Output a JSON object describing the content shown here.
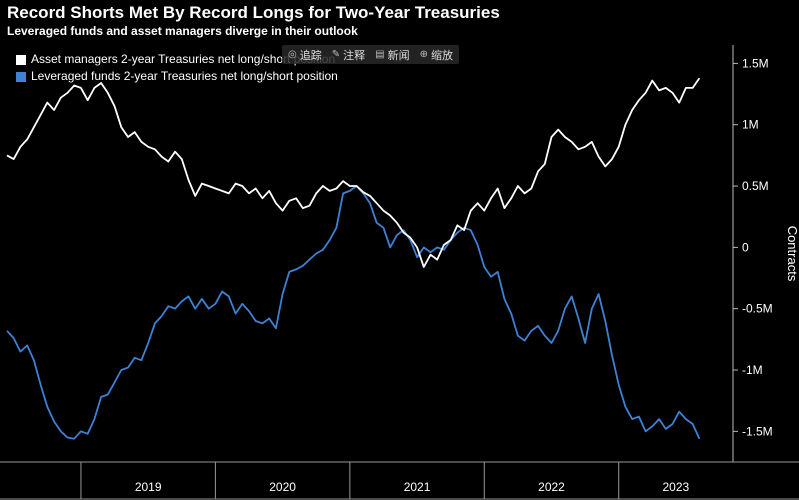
{
  "header": {
    "title": "Record Shorts Met By Record Longs for Two-Year Treasuries",
    "subtitle": "Leveraged funds and asset managers diverge in their outlook"
  },
  "toolbar_overlay": {
    "items": [
      {
        "icon": "fingerprint-icon",
        "glyph": "◎",
        "label": "追踪"
      },
      {
        "icon": "note-icon",
        "glyph": "✎",
        "label": "注释"
      },
      {
        "icon": "news-icon",
        "glyph": "▤",
        "label": "新闻"
      },
      {
        "icon": "zoom-icon",
        "glyph": "⊕",
        "label": "缩放"
      }
    ]
  },
  "chart_data": {
    "type": "line",
    "title": "Record Shorts Met By Record Longs for Two-Year Treasuries",
    "subtitle": "Leveraged funds and asset managers diverge in their outlook",
    "ylabel": "Contracts",
    "xlabel": "",
    "ylim": [
      -1.75,
      1.65
    ],
    "yticks": [
      {
        "value": 1.5,
        "label": "1.5M"
      },
      {
        "value": 1.0,
        "label": "1M"
      },
      {
        "value": 0.5,
        "label": "0.5M"
      },
      {
        "value": 0,
        "label": "0"
      },
      {
        "value": -0.5,
        "label": "-0.5M"
      },
      {
        "value": -1.0,
        "label": "-1M"
      },
      {
        "value": -1.5,
        "label": "-1.5M"
      }
    ],
    "xrange": [
      2018.45,
      2023.85
    ],
    "year_labels": [
      {
        "year": 2019,
        "label": "2019"
      },
      {
        "year": 2020,
        "label": "2020"
      },
      {
        "year": 2021,
        "label": "2021"
      },
      {
        "year": 2022,
        "label": "2022"
      },
      {
        "year": 2023,
        "label": "2023"
      }
    ],
    "year_boundaries": [
      2019,
      2020,
      2021,
      2022,
      2023
    ],
    "grid": false,
    "legend_position": "top-left",
    "series": [
      {
        "name": "Asset managers 2-year Treasuries net long/short position",
        "color": "#ffffff",
        "x": [
          2018.45,
          2018.5,
          2018.55,
          2018.6,
          2018.65,
          2018.7,
          2018.75,
          2018.8,
          2018.85,
          2018.9,
          2018.95,
          2019.0,
          2019.05,
          2019.1,
          2019.15,
          2019.2,
          2019.25,
          2019.3,
          2019.35,
          2019.4,
          2019.45,
          2019.5,
          2019.55,
          2019.6,
          2019.65,
          2019.7,
          2019.75,
          2019.8,
          2019.85,
          2019.9,
          2019.95,
          2020.0,
          2020.05,
          2020.1,
          2020.15,
          2020.2,
          2020.25,
          2020.3,
          2020.35,
          2020.4,
          2020.45,
          2020.5,
          2020.55,
          2020.6,
          2020.65,
          2020.7,
          2020.75,
          2020.8,
          2020.85,
          2020.9,
          2020.95,
          2021.0,
          2021.05,
          2021.1,
          2021.15,
          2021.2,
          2021.25,
          2021.3,
          2021.35,
          2021.4,
          2021.45,
          2021.5,
          2021.55,
          2021.6,
          2021.65,
          2021.7,
          2021.75,
          2021.8,
          2021.85,
          2021.9,
          2021.95,
          2022.0,
          2022.05,
          2022.1,
          2022.15,
          2022.2,
          2022.25,
          2022.3,
          2022.35,
          2022.4,
          2022.45,
          2022.5,
          2022.55,
          2022.6,
          2022.65,
          2022.7,
          2022.75,
          2022.8,
          2022.85,
          2022.9,
          2022.95,
          2023.0,
          2023.05,
          2023.1,
          2023.15,
          2023.2,
          2023.25,
          2023.3,
          2023.35,
          2023.4,
          2023.45,
          2023.5,
          2023.55,
          2023.6
        ],
        "y": [
          0.75,
          0.72,
          0.82,
          0.88,
          0.98,
          1.08,
          1.18,
          1.12,
          1.22,
          1.26,
          1.32,
          1.3,
          1.2,
          1.3,
          1.34,
          1.26,
          1.15,
          0.98,
          0.9,
          0.94,
          0.86,
          0.82,
          0.8,
          0.74,
          0.7,
          0.78,
          0.72,
          0.55,
          0.42,
          0.52,
          0.5,
          0.48,
          0.46,
          0.44,
          0.52,
          0.5,
          0.44,
          0.48,
          0.4,
          0.46,
          0.36,
          0.3,
          0.38,
          0.4,
          0.32,
          0.34,
          0.44,
          0.5,
          0.46,
          0.48,
          0.54,
          0.5,
          0.5,
          0.45,
          0.42,
          0.36,
          0.3,
          0.26,
          0.2,
          0.12,
          0.08,
          0.0,
          -0.16,
          -0.06,
          -0.1,
          0.02,
          0.06,
          0.18,
          0.14,
          0.3,
          0.36,
          0.3,
          0.4,
          0.48,
          0.32,
          0.4,
          0.5,
          0.44,
          0.48,
          0.62,
          0.68,
          0.9,
          0.96,
          0.9,
          0.86,
          0.8,
          0.82,
          0.86,
          0.74,
          0.66,
          0.72,
          0.82,
          1.0,
          1.12,
          1.2,
          1.26,
          1.36,
          1.28,
          1.3,
          1.26,
          1.18,
          1.3,
          1.3,
          1.38
        ]
      },
      {
        "name": "Leveraged funds 2-year Treasuries net long/short position",
        "color": "#3e82d6",
        "x": [
          2018.45,
          2018.5,
          2018.55,
          2018.6,
          2018.65,
          2018.7,
          2018.75,
          2018.8,
          2018.85,
          2018.9,
          2018.95,
          2019.0,
          2019.05,
          2019.1,
          2019.15,
          2019.2,
          2019.25,
          2019.3,
          2019.35,
          2019.4,
          2019.45,
          2019.5,
          2019.55,
          2019.6,
          2019.65,
          2019.7,
          2019.75,
          2019.8,
          2019.85,
          2019.9,
          2019.95,
          2020.0,
          2020.05,
          2020.1,
          2020.15,
          2020.2,
          2020.25,
          2020.3,
          2020.35,
          2020.4,
          2020.45,
          2020.5,
          2020.55,
          2020.6,
          2020.65,
          2020.7,
          2020.75,
          2020.8,
          2020.85,
          2020.9,
          2020.95,
          2021.0,
          2021.05,
          2021.1,
          2021.15,
          2021.2,
          2021.25,
          2021.3,
          2021.35,
          2021.4,
          2021.45,
          2021.5,
          2021.55,
          2021.6,
          2021.65,
          2021.7,
          2021.75,
          2021.8,
          2021.85,
          2021.9,
          2021.95,
          2022.0,
          2022.05,
          2022.1,
          2022.15,
          2022.2,
          2022.25,
          2022.3,
          2022.35,
          2022.4,
          2022.45,
          2022.5,
          2022.55,
          2022.6,
          2022.65,
          2022.7,
          2022.75,
          2022.8,
          2022.85,
          2022.9,
          2022.95,
          2023.0,
          2023.05,
          2023.1,
          2023.15,
          2023.2,
          2023.25,
          2023.3,
          2023.35,
          2023.4,
          2023.45,
          2023.5,
          2023.55,
          2023.6
        ],
        "y": [
          -0.68,
          -0.74,
          -0.85,
          -0.8,
          -0.92,
          -1.12,
          -1.3,
          -1.42,
          -1.5,
          -1.55,
          -1.56,
          -1.5,
          -1.52,
          -1.4,
          -1.22,
          -1.2,
          -1.1,
          -1.0,
          -0.98,
          -0.9,
          -0.92,
          -0.78,
          -0.62,
          -0.56,
          -0.48,
          -0.5,
          -0.44,
          -0.4,
          -0.5,
          -0.42,
          -0.5,
          -0.46,
          -0.36,
          -0.4,
          -0.54,
          -0.46,
          -0.52,
          -0.6,
          -0.62,
          -0.58,
          -0.66,
          -0.38,
          -0.2,
          -0.18,
          -0.15,
          -0.1,
          -0.05,
          -0.02,
          0.06,
          0.16,
          0.44,
          0.46,
          0.5,
          0.44,
          0.36,
          0.2,
          0.16,
          0.0,
          0.1,
          0.14,
          0.06,
          -0.08,
          0.0,
          -0.04,
          0.0,
          -0.02,
          0.06,
          0.12,
          0.16,
          0.14,
          0.02,
          -0.16,
          -0.24,
          -0.2,
          -0.42,
          -0.54,
          -0.72,
          -0.76,
          -0.68,
          -0.64,
          -0.72,
          -0.78,
          -0.68,
          -0.5,
          -0.4,
          -0.58,
          -0.78,
          -0.5,
          -0.38,
          -0.6,
          -0.88,
          -1.12,
          -1.3,
          -1.4,
          -1.38,
          -1.5,
          -1.46,
          -1.4,
          -1.48,
          -1.44,
          -1.34,
          -1.4,
          -1.44,
          -1.56
        ]
      }
    ]
  }
}
